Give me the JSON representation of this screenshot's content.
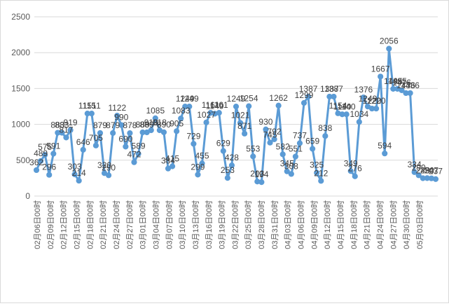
{
  "chart_data": {
    "type": "line",
    "ylim": [
      0,
      2500
    ],
    "yticks": [
      0,
      500,
      1000,
      1500,
      2000,
      2500
    ],
    "grid": "horizontal",
    "legend": "none",
    "line_color": "#5b9bd5",
    "grid_color": "#d9d9d9",
    "x_tick_labels": [
      "02月06日00时",
      "02月09日00时",
      "02月12日00时",
      "02月15日00时",
      "02月18日00时",
      "02月21日00时",
      "02月24日00时",
      "02月27日00时",
      "03月01日00时",
      "03月04日00时",
      "03月07日00时",
      "03月10日00时",
      "03月13日00时",
      "03月16日00时",
      "03月19日00时",
      "03月22日00时",
      "03月25日00时",
      "03月28日00时",
      "03月31日00时",
      "04月03日00时",
      "04月06日00时",
      "04月09日00时",
      "04月12日00时",
      "04月15日00时",
      "04月18日00时",
      "04月21日00时",
      "04月24日00时",
      "04月27日00时",
      "04月30日00时",
      "05月03日00时"
    ],
    "values": [
      362,
      489,
      575,
      296,
      591,
      883,
      883,
      817,
      919,
      303,
      214,
      646,
      1151,
      1151,
      705,
      879,
      320,
      290,
      879,
      1122,
      990,
      690,
      878,
      472,
      589,
      889,
      889,
      918,
      1085,
      918,
      890,
      384,
      415,
      905,
      1083,
      1249,
      1249,
      729,
      299,
      455,
      1027,
      1161,
      1149,
      1161,
      629,
      253,
      428,
      1249,
      1021,
      871,
      1254,
      553,
      203,
      194,
      930,
      745,
      792,
      1262,
      582,
      345,
      308,
      551,
      737,
      1299,
      1387,
      659,
      325,
      212,
      838,
      1387,
      1387,
      1154,
      1140,
      1140,
      349,
      276,
      1034,
      1376,
      1249,
      1220,
      1220,
      1667,
      594,
      2056,
      1495,
      1495,
      1476,
      1436,
      1436,
      334,
      290,
      249,
      250,
      247,
      237
    ]
  }
}
